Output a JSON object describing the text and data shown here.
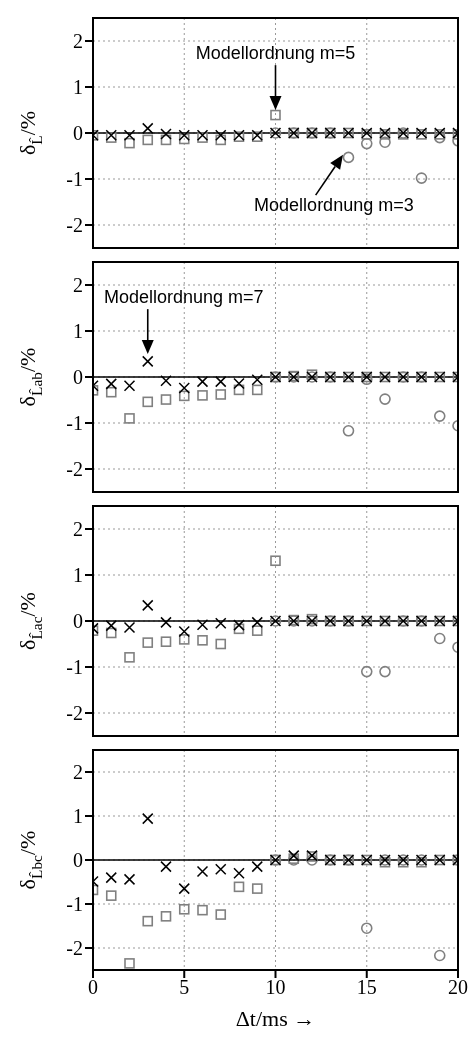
{
  "chart_data": [
    {
      "type": "scatter",
      "ylabel": "δ$_{L̂}$/%",
      "x": [
        0,
        1,
        2,
        3,
        4,
        5,
        6,
        7,
        8,
        9,
        10,
        11,
        12,
        13,
        14,
        15,
        16,
        17,
        18,
        19,
        20
      ],
      "xlim": [
        0,
        20
      ],
      "xticks": [
        0,
        5,
        10,
        15,
        20
      ],
      "ylim": [
        -2.5,
        2.5
      ],
      "yticks": [
        -2,
        -1,
        0,
        1,
        2
      ],
      "grid": true,
      "tick_labels": "y",
      "series": [
        {
          "marker": "square",
          "color": "#808080",
          "values": [
            -0.05,
            -0.1,
            -0.22,
            -0.15,
            -0.15,
            -0.13,
            -0.1,
            -0.15,
            -0.08,
            -0.08,
            0.39,
            0.0,
            0.0,
            0.0,
            0.0,
            -0.03,
            -0.03,
            -0.03,
            -0.03,
            -0.03,
            -0.03
          ]
        },
        {
          "marker": "circle",
          "color": "#808080",
          "values": [
            null,
            null,
            null,
            null,
            null,
            null,
            null,
            null,
            null,
            null,
            0.0,
            0.0,
            0.0,
            0.0,
            -0.53,
            -0.23,
            -0.2,
            0.0,
            -0.98,
            -0.1,
            -0.17
          ]
        },
        {
          "marker": "cross",
          "color": "#000000",
          "values": [
            -0.05,
            -0.05,
            -0.05,
            0.1,
            -0.02,
            -0.05,
            -0.05,
            -0.05,
            -0.05,
            -0.05,
            0.0,
            0.0,
            0.0,
            0.0,
            0.0,
            0.0,
            0.0,
            0.0,
            0.0,
            0.0,
            0.0
          ]
        }
      ],
      "ref_lines": [
        {
          "axis": "y",
          "value": 0,
          "color": "#000000"
        }
      ],
      "annotations": [
        "Modellordnung m=5",
        "Modellordnung m=3"
      ]
    },
    {
      "type": "scatter",
      "ylabel": "δ$_{L̂ab}$/%",
      "x": [
        0,
        1,
        2,
        3,
        4,
        5,
        6,
        7,
        8,
        9,
        10,
        11,
        12,
        13,
        14,
        15,
        16,
        17,
        18,
        19,
        20
      ],
      "xlim": [
        0,
        20
      ],
      "xticks": [
        0,
        5,
        10,
        15,
        20
      ],
      "ylim": [
        -2.5,
        2.5
      ],
      "yticks": [
        -2,
        -1,
        0,
        1,
        2
      ],
      "grid": true,
      "tick_labels": "y",
      "series": [
        {
          "marker": "square",
          "color": "#808080",
          "values": [
            -0.29,
            -0.33,
            -0.9,
            -0.54,
            -0.49,
            -0.41,
            -0.4,
            -0.38,
            -0.28,
            -0.28,
            0.0,
            0.02,
            0.05,
            0.0,
            0.0,
            0.0,
            0.0,
            0.0,
            0.0,
            0.0,
            0.0
          ]
        },
        {
          "marker": "circle",
          "color": "#808080",
          "values": [
            null,
            null,
            null,
            null,
            null,
            null,
            null,
            null,
            null,
            null,
            0.0,
            0.0,
            0.0,
            0.0,
            -1.17,
            -0.05,
            -0.48,
            0.0,
            0.0,
            -0.85,
            -1.06
          ]
        },
        {
          "marker": "cross",
          "color": "#000000",
          "values": [
            -0.19,
            -0.15,
            -0.19,
            0.34,
            -0.08,
            -0.24,
            -0.1,
            -0.1,
            -0.14,
            -0.06,
            0.0,
            0.0,
            0.0,
            0.0,
            0.0,
            0.0,
            0.0,
            0.0,
            0.0,
            0.0,
            0.0
          ]
        }
      ],
      "ref_lines": [
        {
          "axis": "y",
          "value": 0,
          "color": "#000000"
        }
      ],
      "annotations": [
        "Modellordnung m=7"
      ]
    },
    {
      "type": "scatter",
      "ylabel": "δ$_{L̂ac}$/%",
      "x": [
        0,
        1,
        2,
        3,
        4,
        5,
        6,
        7,
        8,
        9,
        10,
        11,
        12,
        13,
        14,
        15,
        16,
        17,
        18,
        19,
        20
      ],
      "xlim": [
        0,
        20
      ],
      "xticks": [
        0,
        5,
        10,
        15,
        20
      ],
      "ylim": [
        -2.5,
        2.5
      ],
      "yticks": [
        -2,
        -1,
        0,
        1,
        2
      ],
      "grid": true,
      "tick_labels": "y",
      "series": [
        {
          "marker": "square",
          "color": "#808080",
          "values": [
            -0.21,
            -0.26,
            -0.79,
            -0.47,
            -0.45,
            -0.4,
            -0.42,
            -0.5,
            -0.17,
            -0.21,
            1.31,
            0.02,
            0.04,
            0.0,
            0.0,
            0.0,
            0.0,
            0.0,
            0.0,
            0.0,
            0.0
          ]
        },
        {
          "marker": "circle",
          "color": "#808080",
          "values": [
            null,
            null,
            null,
            null,
            null,
            null,
            null,
            null,
            null,
            null,
            0.0,
            0.0,
            0.0,
            0.0,
            0.0,
            -1.1,
            -1.1,
            0.0,
            0.0,
            -0.38,
            -0.57
          ]
        },
        {
          "marker": "cross",
          "color": "#000000",
          "values": [
            -0.16,
            -0.1,
            -0.14,
            0.34,
            -0.03,
            -0.23,
            -0.08,
            -0.05,
            -0.09,
            -0.03,
            0.0,
            0.0,
            0.0,
            0.0,
            0.0,
            0.0,
            0.0,
            0.0,
            0.0,
            0.0,
            0.0
          ]
        }
      ],
      "ref_lines": [
        {
          "axis": "y",
          "value": 0,
          "color": "#000000"
        }
      ]
    },
    {
      "type": "scatter",
      "ylabel": "δ$_{L̂bc}$/%",
      "xlabel": "Δt/ms →",
      "x": [
        0,
        1,
        2,
        3,
        4,
        5,
        6,
        7,
        8,
        9,
        10,
        11,
        12,
        13,
        14,
        15,
        16,
        17,
        18,
        19,
        20
      ],
      "xlim": [
        0,
        20
      ],
      "xticks": [
        0,
        5,
        10,
        15,
        20
      ],
      "ylim": [
        -2.5,
        2.5
      ],
      "yticks": [
        -2,
        -1,
        0,
        1,
        2
      ],
      "grid": true,
      "series": [
        {
          "marker": "square",
          "color": "#808080",
          "values": [
            -0.68,
            -0.81,
            -2.35,
            -1.39,
            -1.28,
            -1.12,
            -1.14,
            -1.24,
            -0.61,
            -0.65,
            0.0,
            0.03,
            0.08,
            0.0,
            0.0,
            0.0,
            -0.05,
            -0.05,
            -0.05,
            0.0,
            0.0
          ]
        },
        {
          "marker": "circle",
          "color": "#808080",
          "values": [
            null,
            null,
            null,
            null,
            null,
            null,
            null,
            null,
            null,
            null,
            0.0,
            0.0,
            0.0,
            0.0,
            0.0,
            -1.55,
            0.0,
            0.0,
            0.0,
            -2.17,
            0.0
          ]
        },
        {
          "marker": "cross",
          "color": "#000000",
          "values": [
            -0.49,
            -0.4,
            -0.44,
            0.94,
            -0.15,
            -0.65,
            -0.26,
            -0.21,
            -0.3,
            -0.15,
            0.0,
            0.1,
            0.1,
            0.0,
            0.0,
            0.0,
            0.0,
            0.0,
            0.0,
            0.0,
            0.0
          ]
        }
      ],
      "ref_lines": [
        {
          "axis": "y",
          "value": 0,
          "color": "#000000"
        }
      ]
    }
  ]
}
